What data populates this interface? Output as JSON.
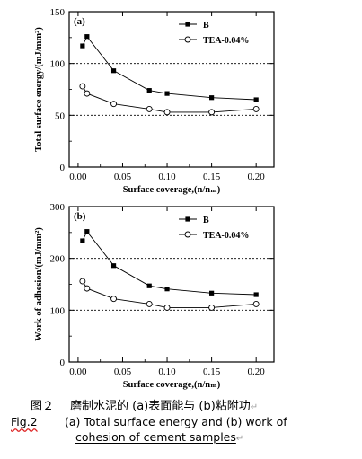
{
  "chart_data": [
    {
      "type": "line",
      "panel_label": "(a)",
      "ylabel": "Total surface energy/(mJ/mm²)",
      "xlabel": "Surface coverage,(n/nₘ)",
      "xlim": [
        -0.01,
        0.22
      ],
      "ylim": [
        0,
        150
      ],
      "x_ticks": [
        0.0,
        0.05,
        0.1,
        0.15,
        0.2
      ],
      "x_tick_labels": [
        "0.00",
        "0.05",
        "0.10",
        "0.15",
        "0.20"
      ],
      "y_ticks": [
        0,
        50,
        100,
        150
      ],
      "y_tick_labels": [
        "0",
        "50",
        "100",
        "150"
      ],
      "reference_lines": [
        50,
        100
      ],
      "legend_position": "top-right",
      "series": [
        {
          "name": "B",
          "marker": "filled-square",
          "x": [
            0.005,
            0.01,
            0.04,
            0.08,
            0.1,
            0.15,
            0.2
          ],
          "y": [
            117,
            126,
            93,
            74,
            71,
            67,
            65
          ]
        },
        {
          "name": "TEA-0.04%",
          "marker": "open-circle",
          "x": [
            0.005,
            0.01,
            0.04,
            0.08,
            0.1,
            0.15,
            0.2
          ],
          "y": [
            78,
            71,
            61,
            56,
            53,
            53,
            56
          ]
        }
      ]
    },
    {
      "type": "line",
      "panel_label": "(b)",
      "ylabel": "Work of adhesion/(mJ/mm²)",
      "xlabel": "Surface coverage,(n/nₘ)",
      "xlim": [
        -0.01,
        0.22
      ],
      "ylim": [
        0,
        300
      ],
      "x_ticks": [
        0.0,
        0.05,
        0.1,
        0.15,
        0.2
      ],
      "x_tick_labels": [
        "0.00",
        "0.05",
        "0.10",
        "0.15",
        "0.20"
      ],
      "y_ticks": [
        0,
        100,
        200,
        300
      ],
      "y_tick_labels": [
        "0",
        "100",
        "200",
        "300"
      ],
      "reference_lines": [
        100,
        200
      ],
      "legend_position": "top-right",
      "series": [
        {
          "name": "B",
          "marker": "filled-square",
          "x": [
            0.005,
            0.01,
            0.04,
            0.08,
            0.1,
            0.15,
            0.2
          ],
          "y": [
            234,
            252,
            186,
            147,
            141,
            133,
            130
          ]
        },
        {
          "name": "TEA-0.04%",
          "marker": "open-circle",
          "x": [
            0.005,
            0.01,
            0.04,
            0.08,
            0.1,
            0.15,
            0.2
          ],
          "y": [
            156,
            142,
            122,
            112,
            105,
            105,
            112
          ]
        }
      ]
    }
  ],
  "caption": {
    "zh_label": "图２",
    "zh_text": "磨制水泥的 (a)表面能与 (b)粘附功",
    "en_label": "Fig.2",
    "en_line1": "(a) Total surface energy and  (b) work of",
    "en_line2": "cohesion of cement samples",
    "paragraph_mark": "↵"
  }
}
